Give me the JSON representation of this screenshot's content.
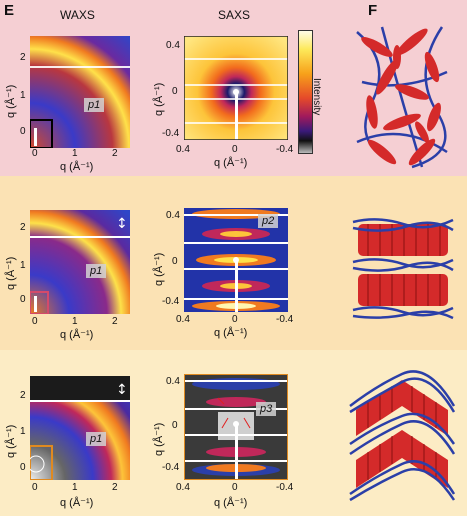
{
  "panels": {
    "left_label": "E",
    "right_label": "F"
  },
  "columns": {
    "waxs": "WAXS",
    "saxs": "SAXS"
  },
  "colorbar": {
    "label": "Intensity"
  },
  "axes": {
    "waxs_x_label": "q (Å⁻¹)",
    "waxs_y_label": "q (Å⁻¹)",
    "saxs_x_label": "q (Å⁻¹)",
    "saxs_y_label": "q (Å⁻¹)",
    "waxs_x_ticks": [
      "0",
      "1",
      "2"
    ],
    "waxs_y_ticks": [
      "2",
      "1",
      "0"
    ],
    "saxs_x_ticks": [
      "0.4",
      "0",
      "-0.4"
    ],
    "saxs_y_ticks": [
      "0.4",
      "0",
      "-0.4"
    ]
  },
  "rows": [
    {
      "waxs_tag": "p1",
      "saxs_tag": ""
    },
    {
      "waxs_tag": "p1",
      "saxs_tag": "p2"
    },
    {
      "waxs_tag": "p1",
      "saxs_tag": "p3"
    }
  ]
}
